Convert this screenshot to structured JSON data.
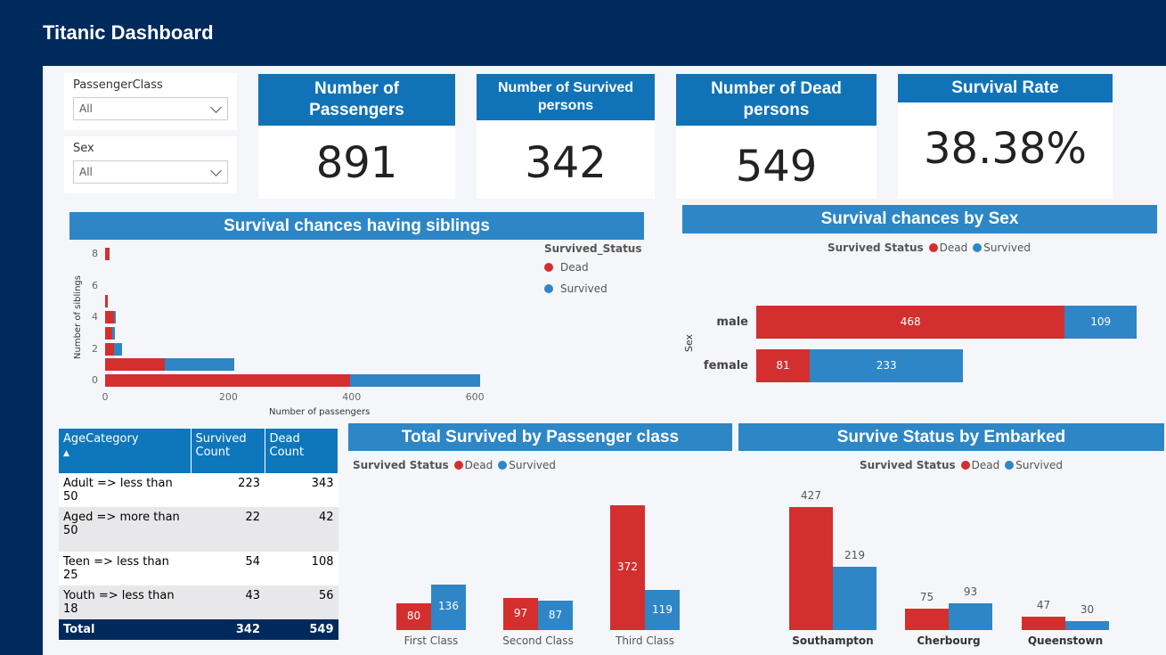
{
  "title": "Titanic Dashboard",
  "colors": {
    "dead": "#d32f2f",
    "survived": "#2e86c6",
    "header": "#1173b7",
    "banner": "#2d86c6",
    "navy": "#002a5c"
  },
  "slicers": [
    {
      "label": "PassengerClass",
      "value": "All"
    },
    {
      "label": "Sex",
      "value": "All"
    }
  ],
  "cards": [
    {
      "title": "Number of Passengers",
      "value": "891"
    },
    {
      "title": "Number of Survived persons",
      "value": "342"
    },
    {
      "title": "Number of Dead persons",
      "value": "549"
    },
    {
      "title": "Survival Rate",
      "value": "38.38%"
    }
  ],
  "siblings": {
    "title": "Survival chances having siblings",
    "legend_title": "Survived_Status",
    "legend": [
      "Dead",
      "Survived"
    ],
    "xlabel": "Number of passengers",
    "ylabel": "Number of siblings",
    "xticks": [
      "0",
      "200",
      "400",
      "600"
    ],
    "yticks": [
      "0",
      "2",
      "4",
      "6",
      "8"
    ]
  },
  "sex": {
    "title": "Survival chances by Sex",
    "legend_title": "Survived Status",
    "legend": [
      "Dead",
      "Survived"
    ],
    "ylabel": "Sex"
  },
  "class": {
    "title": "Total Survived by Passenger class",
    "legend_title": "Survived Status",
    "legend": [
      "Dead",
      "Survived"
    ]
  },
  "embarked": {
    "title": "Survive Status by Embarked",
    "legend_title": "Survived Status",
    "legend": [
      "Dead",
      "Survived"
    ]
  },
  "table": {
    "headers": [
      "AgeCategory",
      "Survived Count",
      "Dead Count"
    ],
    "rows": [
      [
        "Adult => less than 50",
        "223",
        "343"
      ],
      [
        "Aged => more than 50",
        "22",
        "42"
      ],
      [
        "Teen => less than 25",
        "54",
        "108"
      ],
      [
        "Youth => less than 18",
        "43",
        "56"
      ]
    ],
    "total": [
      "Total",
      "342",
      "549"
    ]
  },
  "chart_data": [
    {
      "type": "bar",
      "orientation": "horizontal",
      "stacked": true,
      "title": "Survival chances having siblings",
      "xlabel": "Number of passengers",
      "ylabel": "Number of siblings",
      "xlim": [
        0,
        600
      ],
      "categories": [
        0,
        1,
        2,
        3,
        4,
        5,
        8
      ],
      "series": [
        {
          "name": "Dead",
          "values": [
            398,
            97,
            15,
            12,
            15,
            5,
            7
          ]
        },
        {
          "name": "Survived",
          "values": [
            210,
            112,
            13,
            4,
            3,
            0,
            0
          ]
        }
      ]
    },
    {
      "type": "bar",
      "orientation": "horizontal",
      "stacked": true,
      "title": "Survival chances by Sex",
      "ylabel": "Sex",
      "categories": [
        "male",
        "female"
      ],
      "series": [
        {
          "name": "Dead",
          "values": [
            468,
            81
          ]
        },
        {
          "name": "Survived",
          "values": [
            109,
            233
          ]
        }
      ]
    },
    {
      "type": "bar",
      "title": "Total Survived by Passenger class",
      "categories": [
        "First Class",
        "Second Class",
        "Third Class"
      ],
      "series": [
        {
          "name": "Dead",
          "values": [
            80,
            97,
            372
          ]
        },
        {
          "name": "Survived",
          "values": [
            136,
            87,
            119
          ]
        }
      ]
    },
    {
      "type": "bar",
      "title": "Survive Status by Embarked",
      "categories": [
        "Southampton",
        "Cherbourg",
        "Queenstown"
      ],
      "series": [
        {
          "name": "Dead",
          "values": [
            427,
            75,
            47
          ]
        },
        {
          "name": "Survived",
          "values": [
            219,
            93,
            30
          ]
        }
      ]
    }
  ]
}
